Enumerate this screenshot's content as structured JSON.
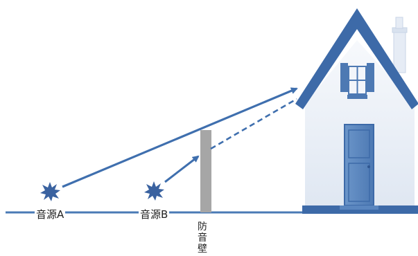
{
  "labels": {
    "source_a": "音源A",
    "source_b": "音源B",
    "barrier": "防音壁"
  },
  "colors": {
    "ground": "#4a7ab5",
    "arrow": "#3f6fae",
    "barrier": "#a6a6a6",
    "house_roof": "#3d6aa8",
    "house_wall": "#e8eef6",
    "house_door": "#5a86bf",
    "burst": "#3a62a0"
  },
  "icons": [
    "source-a-burst-icon",
    "source-b-burst-icon",
    "house-icon"
  ]
}
